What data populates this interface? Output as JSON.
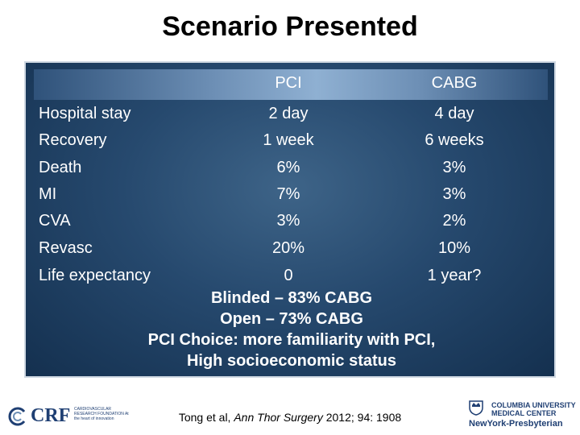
{
  "title": "Scenario Presented",
  "table": {
    "headers": {
      "pci": "PCI",
      "cabg": "CABG"
    },
    "rows": [
      {
        "label": "Hospital stay",
        "pci": "2 day",
        "cabg": "4 day"
      },
      {
        "label": "Recovery",
        "pci": "1 week",
        "cabg": "6 weeks"
      },
      {
        "label": "Death",
        "pci": "6%",
        "cabg": "3%"
      },
      {
        "label": "MI",
        "pci": "7%",
        "cabg": "3%"
      },
      {
        "label": "CVA",
        "pci": "3%",
        "cabg": "2%"
      },
      {
        "label": "Revasc",
        "pci": "20%",
        "cabg": "10%"
      },
      {
        "label": "Life expectancy",
        "pci": "0",
        "cabg": "1 year?"
      }
    ]
  },
  "summary": [
    "Blinded – 83% CABG",
    "Open – 73% CABG",
    "PCI Choice: more familiarity with PCI,",
    "High socioeconomic status"
  ],
  "footer": {
    "crf_logo": "CRF",
    "crf_subtitle": "CARDIOVASCULAR RESEARCH FOUNDATION At the heart of innovation",
    "citation_prefix": "Tong et al, ",
    "citation_journal": "Ann Thor Surgery",
    "citation_suffix": " 2012; 94: 1908",
    "columbia_line1": "COLUMBIA UNIVERSITY",
    "columbia_line2": "MEDICAL CENTER",
    "nyp": "NewYork-Presbyterian"
  },
  "colors": {
    "panel": "#26496e",
    "text": "#ffffff",
    "brand": "#1f3f73"
  }
}
